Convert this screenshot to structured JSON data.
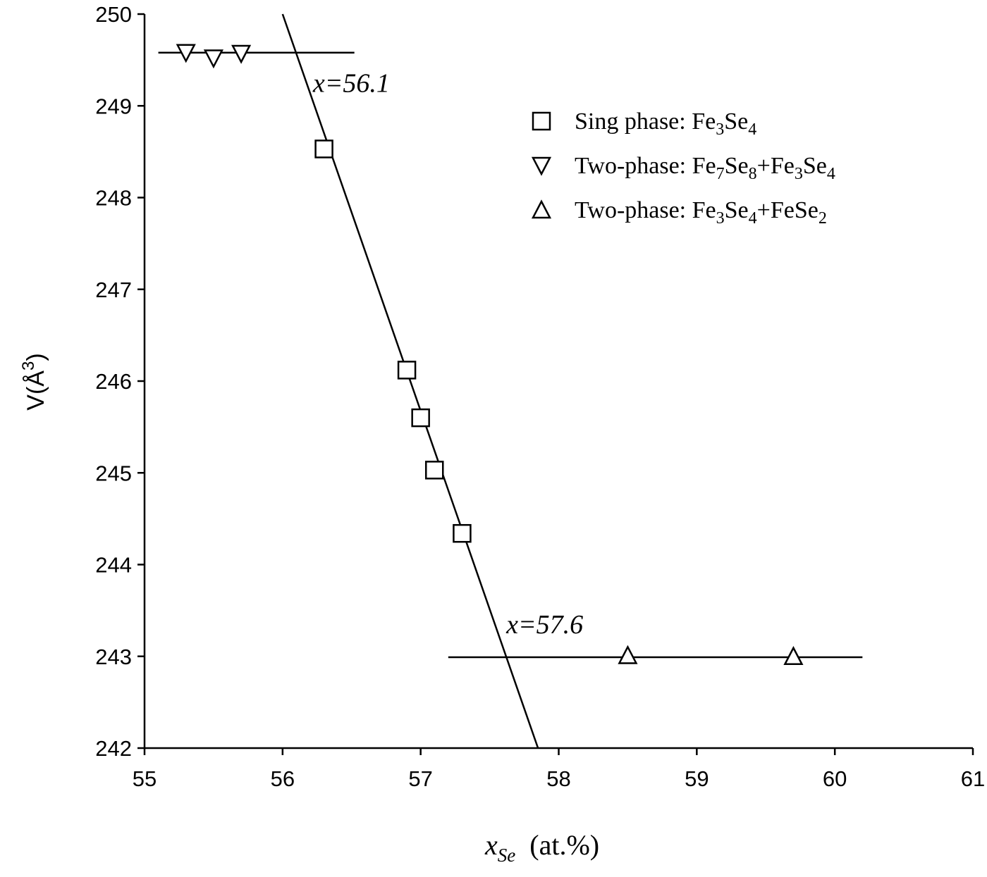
{
  "chart_data": {
    "type": "scatter",
    "xlabel": {
      "var": "x",
      "sub": "Se",
      "unit": "(at.%)"
    },
    "ylabel": {
      "var": "V(",
      "unit": "Å",
      "exp": "3",
      "close": ")"
    },
    "xlim": [
      55,
      61
    ],
    "ylim": [
      242,
      250
    ],
    "xticks": [
      55,
      56,
      57,
      58,
      59,
      60,
      61
    ],
    "yticks": [
      242,
      243,
      244,
      245,
      246,
      247,
      248,
      249,
      250
    ],
    "grid": false,
    "legend_position": "top-right",
    "series": [
      {
        "name": "Sing phase: Fe3Se4",
        "label_parts": [
          {
            "t": "Sing phase: Fe"
          },
          {
            "t": "3",
            "sub": true
          },
          {
            "t": "Se"
          },
          {
            "t": "4",
            "sub": true
          }
        ],
        "marker": "square",
        "points": [
          [
            56.3,
            248.53
          ],
          [
            56.9,
            246.12
          ],
          [
            57.0,
            245.6
          ],
          [
            57.1,
            245.03
          ],
          [
            57.3,
            244.34
          ]
        ]
      },
      {
        "name": "Two-phase: Fe7Se8+Fe3Se4",
        "label_parts": [
          {
            "t": "Two-phase: Fe"
          },
          {
            "t": "7",
            "sub": true
          },
          {
            "t": "Se"
          },
          {
            "t": "8",
            "sub": true
          },
          {
            "t": "+Fe"
          },
          {
            "t": "3",
            "sub": true
          },
          {
            "t": "Se"
          },
          {
            "t": "4",
            "sub": true
          }
        ],
        "marker": "triangle-down",
        "points": [
          [
            55.3,
            249.58
          ],
          [
            55.5,
            249.52
          ],
          [
            55.7,
            249.57
          ]
        ]
      },
      {
        "name": "Two-phase: Fe3Se4+FeSe2",
        "label_parts": [
          {
            "t": "Two-phase: Fe"
          },
          {
            "t": "3",
            "sub": true
          },
          {
            "t": "Se"
          },
          {
            "t": "4",
            "sub": true
          },
          {
            "t": "+FeSe"
          },
          {
            "t": "2",
            "sub": true
          }
        ],
        "marker": "triangle-up",
        "points": [
          [
            58.5,
            243.01
          ],
          [
            59.7,
            243.0
          ]
        ]
      }
    ],
    "lines": [
      {
        "from": [
          56.0,
          250.0
        ],
        "to": [
          57.85,
          242.0
        ]
      },
      {
        "from": [
          55.1,
          249.58
        ],
        "to": [
          56.52,
          249.58
        ]
      },
      {
        "from": [
          57.2,
          242.99
        ],
        "to": [
          60.2,
          242.99
        ]
      }
    ],
    "annotations": [
      {
        "text": "x=56.1",
        "x": 56.22,
        "y": 249.15
      },
      {
        "text": "x=57.6",
        "x": 57.62,
        "y": 243.25
      }
    ]
  }
}
